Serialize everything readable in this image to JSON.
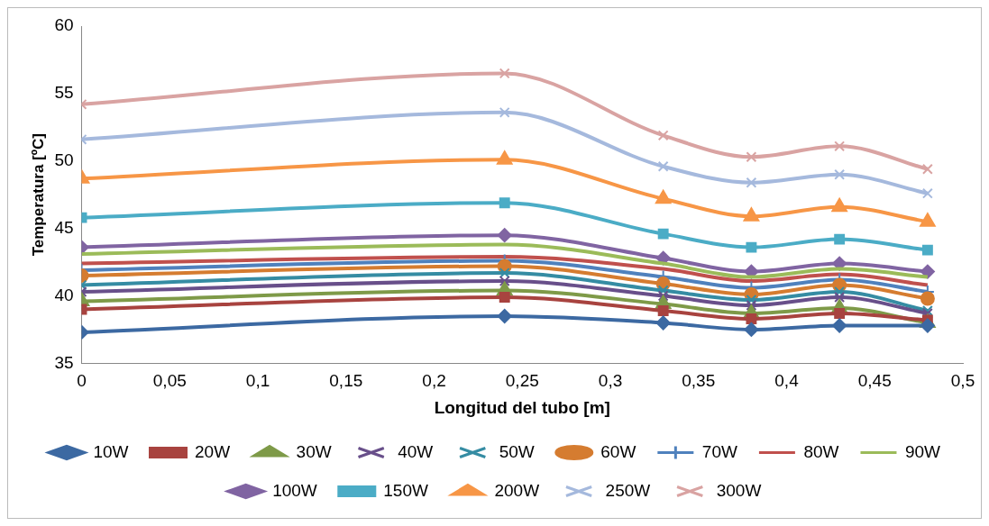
{
  "chart_data": {
    "type": "line",
    "xlabel": "Longitud del tubo [m]",
    "ylabel": "Temperatura [ºC]",
    "x": [
      0,
      0.24,
      0.33,
      0.38,
      0.43,
      0.48
    ],
    "xlim": [
      0,
      0.5
    ],
    "xticks": [
      0,
      {
        "value": 0.05,
        "label": "0,05"
      },
      {
        "value": 0.1,
        "label": "0,1"
      },
      {
        "value": 0.15,
        "label": "0,15"
      },
      {
        "value": 0.2,
        "label": "0,2"
      },
      {
        "value": 0.25,
        "label": "0,25"
      },
      {
        "value": 0.3,
        "label": "0,3"
      },
      {
        "value": 0.35,
        "label": "0,35"
      },
      {
        "value": 0.4,
        "label": "0,4"
      },
      {
        "value": 0.45,
        "label": "0,45"
      },
      {
        "value": 0.5,
        "label": "0,5"
      }
    ],
    "ylim": [
      35,
      60
    ],
    "yticks": [
      35,
      40,
      45,
      50,
      55,
      60
    ],
    "grid": false,
    "legend": "bottom",
    "line_style": "solid",
    "series": [
      {
        "name": "10W",
        "color": "#3c69a2",
        "marker": "diamond",
        "values": [
          37.3,
          38.5,
          38.0,
          37.5,
          37.8,
          37.8
        ]
      },
      {
        "name": "20W",
        "color": "#a8433f",
        "marker": "square",
        "values": [
          39.0,
          39.9,
          38.9,
          38.3,
          38.7,
          38.2
        ]
      },
      {
        "name": "30W",
        "color": "#7e9a48",
        "marker": "triangle",
        "values": [
          39.6,
          40.4,
          39.4,
          38.7,
          39.1,
          38.0
        ]
      },
      {
        "name": "40W",
        "color": "#684f8a",
        "marker": "cross",
        "values": [
          40.3,
          41.1,
          40.0,
          39.3,
          39.9,
          38.7
        ]
      },
      {
        "name": "50W",
        "color": "#358ca3",
        "marker": "cross",
        "values": [
          40.8,
          41.7,
          40.4,
          39.7,
          40.3,
          38.9
        ]
      },
      {
        "name": "60W",
        "color": "#d57c30",
        "marker": "circle",
        "values": [
          41.5,
          42.2,
          40.9,
          40.1,
          40.8,
          39.8
        ]
      },
      {
        "name": "70W",
        "color": "#4f81bd",
        "marker": "plus",
        "values": [
          41.9,
          42.6,
          41.4,
          40.6,
          41.2,
          40.3
        ]
      },
      {
        "name": "80W",
        "color": "#c0504d",
        "marker": "none",
        "values": [
          42.4,
          42.9,
          42.0,
          41.1,
          41.6,
          40.8
        ]
      },
      {
        "name": "90W",
        "color": "#9bbb59",
        "marker": "none",
        "values": [
          43.1,
          43.8,
          42.4,
          41.4,
          42.0,
          41.4
        ]
      },
      {
        "name": "100W",
        "color": "#8064a2",
        "marker": "diamond",
        "values": [
          43.6,
          44.5,
          42.8,
          41.8,
          42.4,
          41.8
        ]
      },
      {
        "name": "150W",
        "color": "#4bacc6",
        "marker": "square",
        "values": [
          45.8,
          46.9,
          44.6,
          43.6,
          44.2,
          43.4
        ]
      },
      {
        "name": "200W",
        "color": "#f79646",
        "marker": "triangle",
        "values": [
          48.7,
          50.1,
          47.2,
          45.9,
          46.6,
          45.5
        ]
      },
      {
        "name": "250W",
        "color": "#a5b9dd",
        "marker": "cross",
        "values": [
          51.6,
          53.6,
          49.6,
          48.4,
          49.0,
          47.6
        ]
      },
      {
        "name": "300W",
        "color": "#d9a3a2",
        "marker": "cross",
        "values": [
          54.2,
          56.5,
          51.9,
          50.3,
          51.1,
          49.4
        ]
      }
    ]
  }
}
